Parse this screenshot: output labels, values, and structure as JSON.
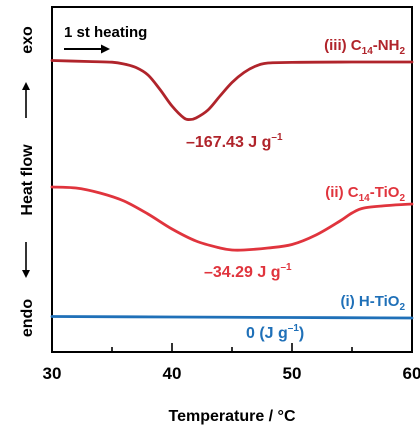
{
  "chart_data": {
    "type": "line",
    "title": "",
    "xlabel": "Temperature / °C",
    "ylabel": "Heat flow",
    "y_top_label": "exo",
    "y_bottom_label": "endo",
    "xlim": [
      30,
      60
    ],
    "x_ticks": [
      30,
      40,
      50,
      60
    ],
    "y_ticks": [],
    "grid": false,
    "legend": "none",
    "annotation": "1 st heating",
    "series": [
      {
        "name": "(iii) C14-NH2",
        "label_parts": {
          "prefix": "(iii) C",
          "sub1": "14",
          "mid": "-NH",
          "sub2": "2"
        },
        "color": "#b0242b",
        "value_label": "–167.43 J g–1",
        "value_label_parts": {
          "main": "–167.43 J g",
          "sup": "–1",
          "suffix": ""
        },
        "x": [
          30,
          33,
          35,
          36,
          37,
          38,
          39,
          40,
          41,
          41.5,
          42,
          43,
          44,
          45,
          46,
          47,
          48,
          50,
          52,
          55,
          58,
          60
        ],
        "y": [
          60.5,
          61.5,
          62.2,
          64,
          67.5,
          75,
          89.5,
          106,
          118,
          119.5,
          118,
          110,
          96,
          82.5,
          72.5,
          66,
          63,
          62.4,
          62.2,
          62,
          62,
          62
        ]
      },
      {
        "name": "(ii) C14-TiO2",
        "label_parts": {
          "prefix": "(ii) C",
          "sub1": "14",
          "mid": "-TiO",
          "sub2": "2"
        },
        "color": "#e0343d",
        "value_label": "–34.29 J g–1",
        "value_label_parts": {
          "main": "–34.29 J g",
          "sup": "–1",
          "suffix": ""
        },
        "x": [
          30,
          32,
          34,
          36,
          38,
          40,
          42,
          44,
          45,
          46,
          48,
          50,
          52,
          54,
          55,
          56,
          58,
          60
        ],
        "y": [
          187,
          188,
          193,
          201,
          214,
          229,
          241,
          248,
          250,
          250,
          248,
          244.5,
          235,
          221,
          213,
          208,
          205.5,
          204
        ]
      },
      {
        "name": "(i) H-TiO2",
        "label_parts": {
          "prefix": "(i) H-TiO",
          "sub1": "",
          "mid": "",
          "sub2": "2"
        },
        "color": "#1f70b8",
        "value_label": "0 (J g–1)",
        "value_label_parts": {
          "main": "0 (J g",
          "sup": "–1",
          "suffix": ")"
        },
        "x": [
          30,
          40,
          50,
          60
        ],
        "y": [
          316.5,
          317,
          317.5,
          318
        ]
      }
    ]
  }
}
